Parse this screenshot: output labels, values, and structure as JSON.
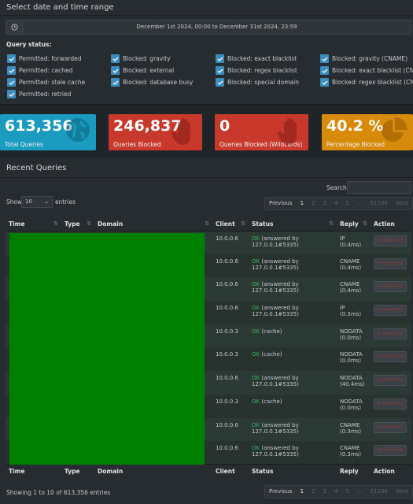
{
  "date_box": {
    "title": "Select date and time range",
    "range_value": "December 1st 2024, 00:00 to December 31st 2024, 23:59",
    "query_status_title": "Query status:",
    "checkboxes": [
      "Permitted: forwarded",
      "Blocked: gravity",
      "Blocked: exact blacklist",
      "Blocked: gravity (CNAME)",
      "Permitted: cached",
      "Blocked: external",
      "Blocked: regex blacklist",
      "Blocked: exact blacklist (CNAME)",
      "Permitted: stale cache",
      "Blocked: database busy",
      "Blocked: special domain",
      "Blocked: regex blacklist (CNAME)",
      "Permitted: retried"
    ]
  },
  "stats": [
    {
      "value": "613,356",
      "label": "Total Queries",
      "color": "#1a9bbf",
      "icon": "globe-icon"
    },
    {
      "value": "246,837",
      "label": "Queries Blocked",
      "color": "#c8392c",
      "icon": "hand-icon"
    },
    {
      "value": "0",
      "label": "Queries Blocked (Wildcards)",
      "color": "#c8392c",
      "icon": "hand-icon"
    },
    {
      "value": "40.2 %",
      "label": "Percentage Blocked",
      "color": "#d88a0a",
      "icon": "pie-chart-icon"
    }
  ],
  "recent": {
    "title": "Recent Queries",
    "search_label": "Search:",
    "show_label": "Show",
    "entries_value": "10",
    "entries_label": "entries",
    "pager": {
      "previous": "Previous",
      "pages": [
        "1",
        "2",
        "3",
        "4",
        "5",
        "...",
        "61336"
      ],
      "next": "Next"
    },
    "columns": [
      "Time",
      "Type",
      "Domain",
      "Client",
      "Status",
      "Reply",
      "Action"
    ],
    "rows": [
      {
        "client": "10.0.0.6",
        "status_ok": "OK",
        "status_rest": "(answered by 127.0.0.1#5335)",
        "reply": "IP (0.4ms)",
        "action": "Blacklist"
      },
      {
        "client": "10.0.0.6",
        "status_ok": "OK",
        "status_rest": "(answered by 127.0.0.1#5335)",
        "reply": "CNAME (0.4ms)",
        "action": "Blacklist"
      },
      {
        "client": "10.0.0.6",
        "status_ok": "OK",
        "status_rest": "(answered by 127.0.0.1#5335)",
        "reply": "CNAME (0.4ms)",
        "action": "Blacklist"
      },
      {
        "client": "10.0.0.6",
        "status_ok": "OK",
        "status_rest": "(answered by 127.0.0.1#5335)",
        "reply": "IP (0.3ms)",
        "action": "Blacklist"
      },
      {
        "client": "10.0.0.3",
        "status_ok": "OK",
        "status_rest": "(cache)",
        "reply": "NODATA (0.0ms)",
        "action": "Blacklist"
      },
      {
        "client": "10.0.0.3",
        "status_ok": "OK",
        "status_rest": "(cache)",
        "reply": "NODATA (0.0ms)",
        "action": "Blacklist"
      },
      {
        "client": "10.0.0.6",
        "status_ok": "OK",
        "status_rest": "(answered by 127.0.0.1#5335)",
        "reply": "NODATA (40.4ms)",
        "action": "Blacklist"
      },
      {
        "client": "10.0.0.3",
        "status_ok": "OK",
        "status_rest": "(cache)",
        "reply": "NODATA (0.0ms)",
        "action": "Blacklist"
      },
      {
        "client": "10.0.0.6",
        "status_ok": "OK",
        "status_rest": "(answered by 127.0.0.1#5335)",
        "reply": "CNAME (0.3ms)",
        "action": "Blacklist"
      },
      {
        "client": "10.0.0.6",
        "status_ok": "OK",
        "status_rest": "(answered by 127.0.0.1#5335)",
        "reply": "CNAME (0.3ms)",
        "action": "Blacklist"
      }
    ],
    "showing": "Showing 1 to 10 of 613,356 entries"
  }
}
